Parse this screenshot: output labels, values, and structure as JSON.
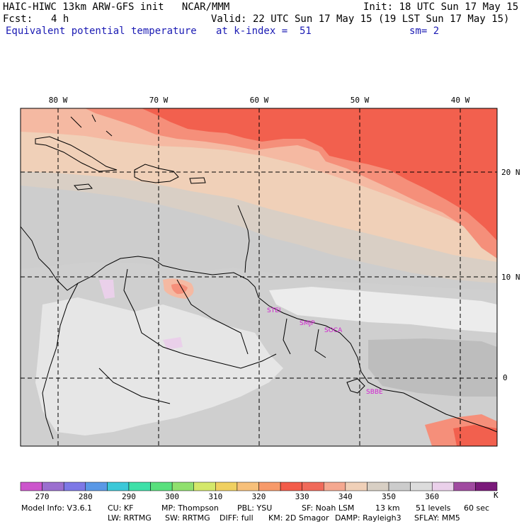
{
  "header": {
    "title": "HAIC-HIWC 13km ARW-GFS init   NCAR/MMM",
    "init": "Init: 18 UTC Sun 17 May 15",
    "fcst_label": "Fcst:",
    "fcst_value": "4 h",
    "valid": "Valid: 22 UTC Sun 17 May 15 (19 LST Sun 17 May 15)",
    "field": "Equivalent potential temperature",
    "level": "at k-index =  51",
    "smooth": "sm= 2"
  },
  "map": {
    "lon_labels": [
      "80 W",
      "70 W",
      "60 W",
      "50 W",
      "40 W"
    ],
    "lat_labels": [
      "20 N",
      "10 N",
      "0"
    ],
    "stations": [
      "STEI",
      "SMJP",
      "SOCA",
      "SBBE"
    ]
  },
  "colorbar": {
    "colors": [
      "#cc55cc",
      "#9b6fcf",
      "#7d78e6",
      "#5a98e6",
      "#3cc8d8",
      "#3ee0a8",
      "#59e07d",
      "#90e06e",
      "#d4e86a",
      "#f0d060",
      "#f7c07a",
      "#f79a6a",
      "#f35c4a",
      "#f06a5a",
      "#f5a890",
      "#f0d0b8",
      "#d8cfc4",
      "#cccccc",
      "#dcdcdc",
      "#ead0ea",
      "#a04aa0",
      "#7a1a7a"
    ],
    "labels": [
      "270",
      "280",
      "290",
      "300",
      "310",
      "320",
      "330",
      "340",
      "350",
      "360"
    ],
    "unit": "K"
  },
  "footer": {
    "line1": [
      "Model Info: V3.6.1",
      "CU: KF",
      "MP: Thompson",
      "PBL: YSU",
      "SF: Noah LSM",
      "13 km",
      "51 levels",
      "60 sec"
    ],
    "line2": [
      "LW: RRTMG",
      "SW: RRTMG",
      "DIFF: full",
      "KM: 2D Smagor",
      "DAMP: Rayleigh3",
      "SFLAY: MM5"
    ]
  }
}
